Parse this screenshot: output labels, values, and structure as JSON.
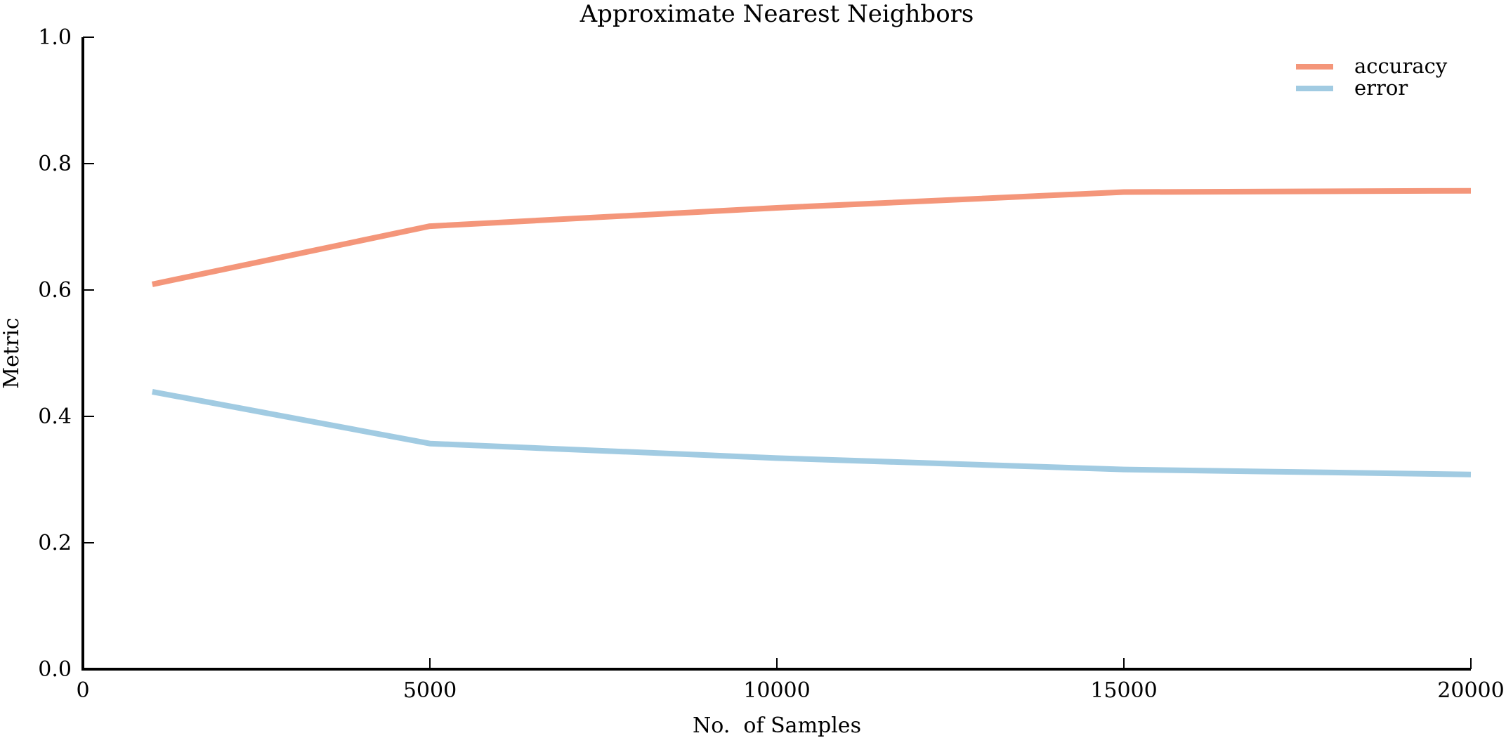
{
  "chart_data": {
    "type": "line",
    "title": "Approximate Nearest Neighbors",
    "xlabel": "No.  of Samples",
    "ylabel": "Metric",
    "x": [
      1000,
      5000,
      10000,
      15000,
      20000
    ],
    "series": [
      {
        "name": "accuracy",
        "color": "#f4967a",
        "values": [
          0.609,
          0.701,
          0.73,
          0.755,
          0.757
        ]
      },
      {
        "name": "error",
        "color": "#a1cbe2",
        "values": [
          0.439,
          0.357,
          0.334,
          0.316,
          0.308
        ]
      }
    ],
    "xlim": [
      0,
      20000
    ],
    "ylim": [
      0.0,
      1.0
    ],
    "xticks": [
      0,
      5000,
      10000,
      15000,
      20000
    ],
    "xtick_labels": [
      "0",
      "5000",
      "10000",
      "15000",
      "20000"
    ],
    "yticks": [
      0.0,
      0.2,
      0.4,
      0.6,
      0.8,
      1.0
    ],
    "ytick_labels": [
      "0.0",
      "0.2",
      "0.4",
      "0.6",
      "0.8",
      "1.0"
    ],
    "grid": false,
    "legend_position": "top-right",
    "axis_color": "#000000"
  }
}
